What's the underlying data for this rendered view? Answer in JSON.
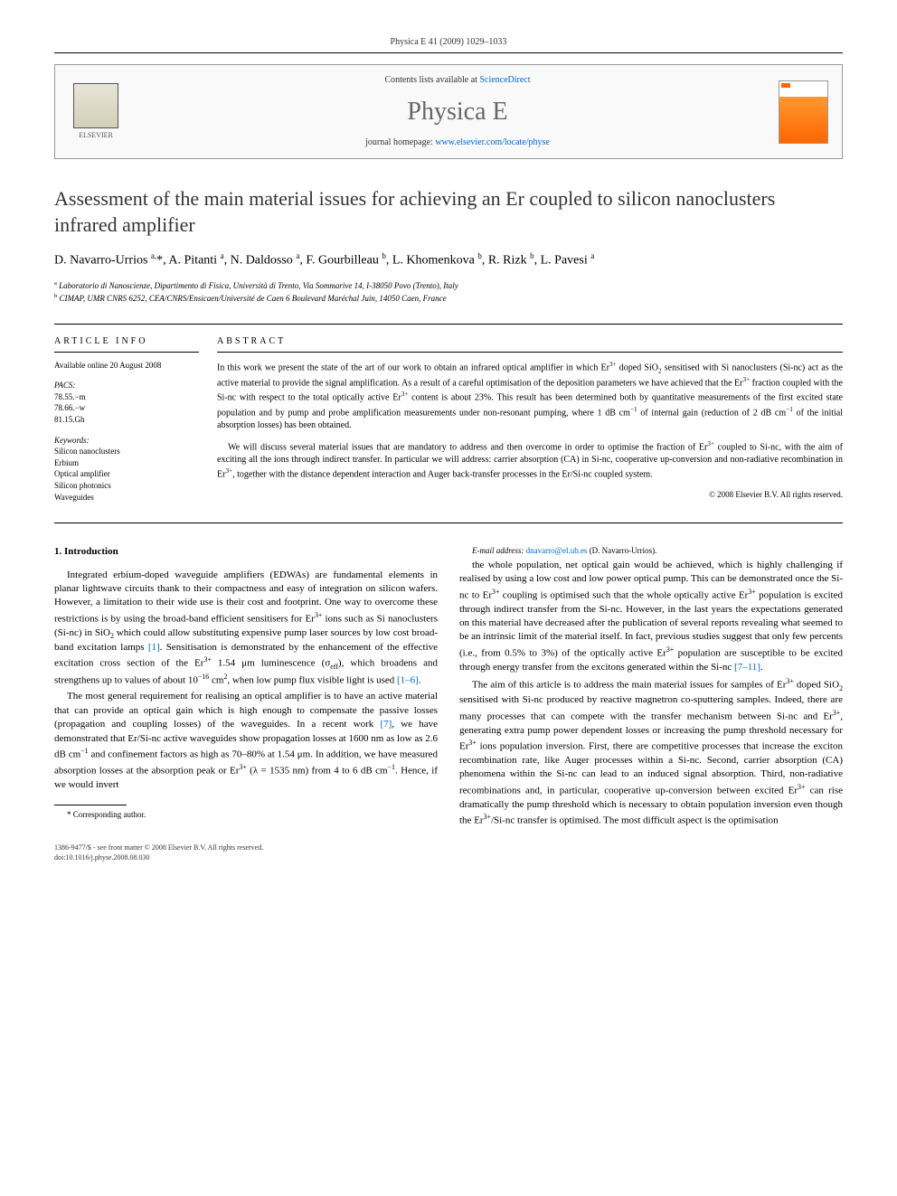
{
  "header": {
    "citation": "Physica E 41 (2009) 1029–1033"
  },
  "journalbox": {
    "contents_prefix": "Contents lists available at ",
    "contents_link": "ScienceDirect",
    "journal_name": "Physica E",
    "homepage_prefix": "journal homepage: ",
    "homepage_link": "www.elsevier.com/locate/physe",
    "publisher": "ELSEVIER"
  },
  "article": {
    "title": "Assessment of the main material issues for achieving an Er coupled to silicon nanoclusters infrared amplifier",
    "authors_html": "D. Navarro-Urrios <sup>a,</sup>*, A. Pitanti <sup>a</sup>, N. Daldosso <sup>a</sup>, F. Gourbilleau <sup>b</sup>, L. Khomenkova <sup>b</sup>, R. Rizk <sup>b</sup>, L. Pavesi <sup>a</sup>",
    "affiliations": [
      "<sup>a</sup> Laboratorio di Nanoscienze, Dipartimento di Fisica, Università di Trento, Via Sommarive 14, I-38050 Povo (Trento), Italy",
      "<sup>b</sup> CIMAP, UMR CNRS 6252, CEA/CNRS/Ensicaen/Université de Caen 6 Boulevard Maréchal Juin, 14050 Caen, France"
    ]
  },
  "info": {
    "heading": "ARTICLE INFO",
    "available": "Available online 20 August 2008",
    "pacs_label": "PACS:",
    "pacs": [
      "78.55.−m",
      "78.66.−w",
      "81.15.Gh"
    ],
    "keywords_label": "Keywords:",
    "keywords": [
      "Silicon nanoclusters",
      "Erbium",
      "Optical amplifier",
      "Silicon photonics",
      "Waveguides"
    ]
  },
  "abstract": {
    "heading": "ABSTRACT",
    "paragraphs": [
      "In this work we present the state of the art of our work to obtain an infrared optical amplifier in which Er<sup>3+</sup> doped SiO<sub>2</sub> sensitised with Si nanoclusters (Si-nc) act as the active material to provide the signal amplification. As a result of a careful optimisation of the deposition parameters we have achieved that the Er<sup>3+</sup> fraction coupled with the Si-nc with respect to the total optically active Er<sup>3+</sup> content is about 23%. This result has been determined both by quantitative measurements of the first excited state population and by pump and probe amplification measurements under non-resonant pumping, where 1 dB cm<sup>−1</sup> of internal gain (reduction of 2 dB cm<sup>−1</sup> of the initial absorption losses) has been obtained.",
      "We will discuss several material issues that are mandatory to address and then overcome in order to optimise the fraction of Er<sup>3+</sup> coupled to Si-nc, with the aim of exciting all the ions through indirect transfer. In particular we will address: carrier absorption (CA) in Si-nc, cooperative up-conversion and non-radiative recombination in Er<sup>3+</sup>, together with the distance dependent interaction and Auger back-transfer processes in the Er/Si-nc coupled system."
    ],
    "copyright": "© 2008 Elsevier B.V. All rights reserved."
  },
  "body": {
    "section_num": "1.",
    "section_title": "Introduction",
    "paragraphs": [
      "Integrated erbium-doped waveguide amplifiers (EDWAs) are fundamental elements in planar lightwave circuits thank to their compactness and easy of integration on silicon wafers. However, a limitation to their wide use is their cost and footprint. One way to overcome these restrictions is by using the broad-band efficient sensitisers for Er<sup>3+</sup> ions such as Si nanoclusters (Si-nc) in SiO<sub>2</sub> which could allow substituting expensive pump laser sources by low cost broad-band excitation lamps <a href=\"#\">[1]</a>. Sensitisation is demonstrated by the enhancement of the effective excitation cross section of the Er<sup>3+</sup> 1.54 μm luminescence (σ<sub>eff</sub>), which broadens and strengthens up to values of about 10<sup>−16</sup> cm<sup>2</sup>, when low pump flux visible light is used <a href=\"#\">[1–6]</a>.",
      "The most general requirement for realising an optical amplifier is to have an active material that can provide an optical gain which is high enough to compensate the passive losses (propagation and coupling losses) of the waveguides. In a recent work <a href=\"#\">[7]</a>, we have demonstrated that Er/Si-nc active waveguides show propagation losses at 1600 nm as low as 2.6 dB cm<sup>−1</sup> and confinement factors as high as 70–80% at 1.54 μm. In addition, we have measured absorption losses at the absorption peak or Er<sup>3+</sup> (λ = 1535 nm) from 4 to 6 dB cm<sup>−1</sup>. Hence, if we would invert",
      "the whole population, net optical gain would be achieved, which is highly challenging if realised by using a low cost and low power optical pump. This can be demonstrated once the Si-nc to Er<sup>3+</sup> coupling is optimised such that the whole optically active Er<sup>3+</sup> population is excited through indirect transfer from the Si-nc. However, in the last years the expectations generated on this material have decreased after the publication of several reports revealing what seemed to be an intrinsic limit of the material itself. In fact, previous studies suggest that only few percents (i.e., from 0.5% to 3%) of the optically active Er<sup>3+</sup> population are susceptible to be excited through energy transfer from the excitons generated within the Si-nc <a href=\"#\">[7–11]</a>.",
      "The aim of this article is to address the main material issues for samples of Er<sup>3+</sup> doped SiO<sub>2</sub> sensitised with Si-nc produced by reactive magnetron co-sputtering samples. Indeed, there are many processes that can compete with the transfer mechanism between Si-nc and Er<sup>3+</sup>, generating extra pump power dependent losses or increasing the pump threshold necessary for Er<sup>3+</sup> ions population inversion. First, there are competitive processes that increase the exciton recombination rate, like Auger processes within a Si-nc. Second, carrier absorption (CA) phenomena within the Si-nc can lead to an induced signal absorption. Third, non-radiative recombinations and, in particular, cooperative up-conversion between excited Er<sup>3+</sup> can rise dramatically the pump threshold which is necessary to obtain population inversion even though the Er<sup>3+</sup>/Si-nc transfer is optimised. The most difficult aspect is the optimisation"
    ]
  },
  "footnote": {
    "corresponding": "* Corresponding author.",
    "email_label": "E-mail address:",
    "email": "dnavarro@el.ub.es",
    "email_name": "(D. Navarro-Urrios)."
  },
  "footer": {
    "line1": "1386-9477/$ - see front matter © 2008 Elsevier B.V. All rights reserved.",
    "line2": "doi:10.1016/j.physe.2008.08.030"
  }
}
